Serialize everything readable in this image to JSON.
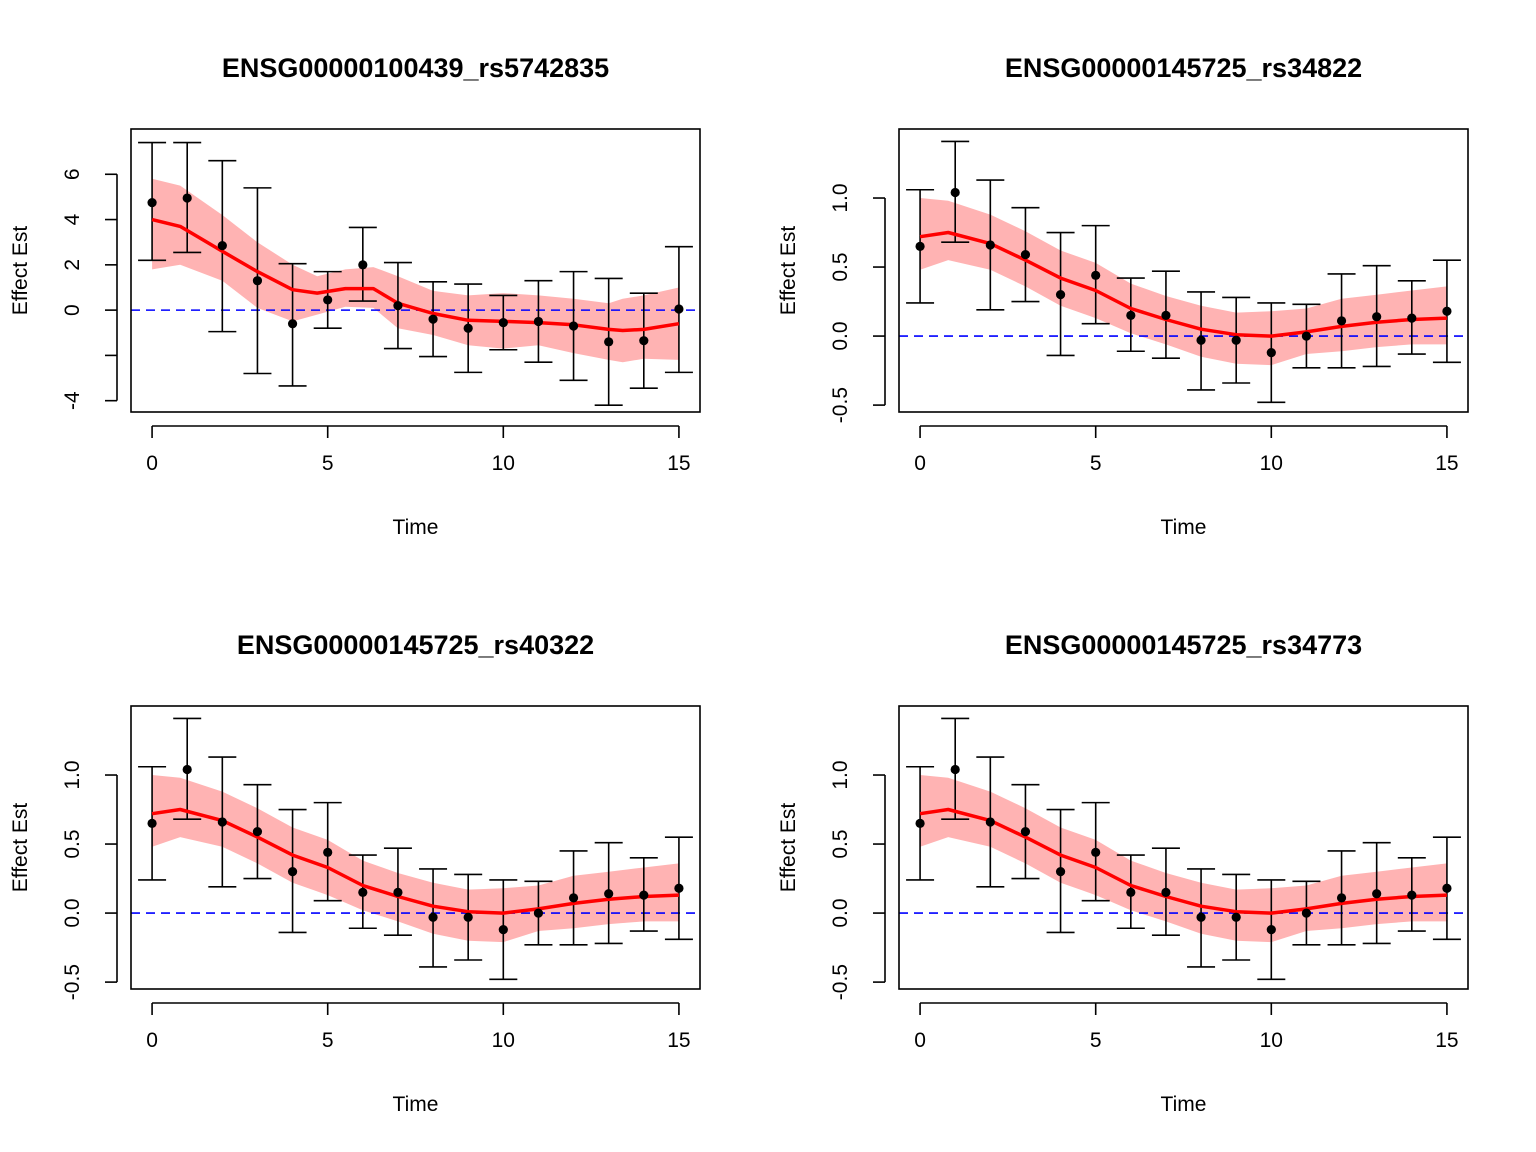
{
  "colors": {
    "band": "#ffb3b3",
    "trend": "#ff0000",
    "points": "#000000",
    "baseline": "#0000ff",
    "errorbar": "#000000"
  },
  "chart_data": [
    {
      "type": "line",
      "title": "ENSG00000100439_rs5742835",
      "xlabel": "Time",
      "ylabel": "Effect Est",
      "xlim": [
        -0.6,
        15.6
      ],
      "ylim": [
        -4.5,
        8.0
      ],
      "xticks": [
        0,
        5,
        10,
        15
      ],
      "yticks": [
        -4,
        -2,
        0,
        2,
        4,
        6
      ],
      "ytick_labels": [
        "-4",
        "",
        "0",
        "2",
        "4",
        "6"
      ],
      "baseline": 0,
      "grid": false,
      "time": [
        0,
        1,
        2,
        3,
        4,
        5,
        6,
        7,
        8,
        9,
        10,
        11,
        12,
        13,
        14,
        15
      ],
      "estimate": [
        4.75,
        4.95,
        2.85,
        1.3,
        -0.6,
        0.45,
        2.0,
        0.2,
        -0.4,
        -0.8,
        -0.55,
        -0.5,
        -0.7,
        -1.4,
        -1.35,
        0.05
      ],
      "ci_lower": [
        2.2,
        2.55,
        -0.95,
        -2.8,
        -3.35,
        -0.8,
        0.4,
        -1.7,
        -2.05,
        -2.75,
        -1.75,
        -2.3,
        -3.1,
        -4.2,
        -3.45,
        -2.75
      ],
      "ci_upper": [
        7.4,
        7.4,
        6.6,
        5.4,
        2.05,
        1.7,
        3.65,
        2.1,
        1.25,
        1.15,
        0.65,
        1.3,
        1.7,
        1.4,
        0.75,
        2.8
      ],
      "fit_x": [
        0,
        0.8,
        2,
        3,
        4,
        4.7,
        5.5,
        6.3,
        7,
        8,
        9,
        10,
        11,
        12,
        13,
        13.4,
        14,
        15
      ],
      "fit": [
        4.0,
        3.7,
        2.6,
        1.7,
        0.9,
        0.75,
        0.95,
        0.95,
        0.3,
        -0.15,
        -0.45,
        -0.5,
        -0.55,
        -0.65,
        -0.85,
        -0.9,
        -0.85,
        -0.6
      ],
      "fit_lower": [
        1.8,
        2.0,
        1.3,
        0.1,
        -0.5,
        -0.2,
        0.15,
        0.1,
        -0.8,
        -1.1,
        -1.55,
        -1.7,
        -1.55,
        -1.9,
        -2.2,
        -2.3,
        -2.15,
        -2.2
      ],
      "fit_upper": [
        5.8,
        5.5,
        4.2,
        3.0,
        2.0,
        1.5,
        1.8,
        1.9,
        1.5,
        0.85,
        0.65,
        0.75,
        0.65,
        0.5,
        0.3,
        0.5,
        0.65,
        1.0
      ]
    },
    {
      "type": "line",
      "title": "ENSG00000145725_rs34822",
      "xlabel": "Time",
      "ylabel": "Effect Est",
      "xlim": [
        -0.6,
        15.6
      ],
      "ylim": [
        -0.55,
        1.5
      ],
      "xticks": [
        0,
        5,
        10,
        15
      ],
      "yticks": [
        -0.5,
        0.0,
        0.5,
        1.0
      ],
      "ytick_labels": [
        "-0.5",
        "0.0",
        "0.5",
        "1.0"
      ],
      "baseline": 0,
      "grid": false,
      "time": [
        0,
        1,
        2,
        3,
        4,
        5,
        6,
        7,
        8,
        9,
        10,
        11,
        12,
        13,
        14,
        15
      ],
      "estimate": [
        0.65,
        1.04,
        0.66,
        0.59,
        0.3,
        0.44,
        0.15,
        0.15,
        -0.03,
        -0.03,
        -0.12,
        0.0,
        0.11,
        0.14,
        0.13,
        0.18
      ],
      "ci_lower": [
        0.24,
        0.68,
        0.19,
        0.25,
        -0.14,
        0.09,
        -0.11,
        -0.16,
        -0.39,
        -0.34,
        -0.48,
        -0.23,
        -0.23,
        -0.22,
        -0.13,
        -0.19
      ],
      "ci_upper": [
        1.06,
        1.41,
        1.13,
        0.93,
        0.75,
        0.8,
        0.42,
        0.47,
        0.32,
        0.28,
        0.24,
        0.23,
        0.45,
        0.51,
        0.4,
        0.55
      ],
      "fit_x": [
        0,
        0.8,
        2,
        3,
        4,
        5,
        6,
        7,
        8,
        9,
        10,
        11,
        12,
        13,
        14,
        15
      ],
      "fit": [
        0.72,
        0.75,
        0.67,
        0.55,
        0.42,
        0.33,
        0.2,
        0.12,
        0.05,
        0.01,
        0.0,
        0.03,
        0.07,
        0.1,
        0.12,
        0.13
      ],
      "fit_lower": [
        0.48,
        0.55,
        0.48,
        0.36,
        0.22,
        0.13,
        0.02,
        -0.06,
        -0.15,
        -0.2,
        -0.21,
        -0.13,
        -0.11,
        -0.08,
        -0.06,
        -0.06
      ],
      "fit_upper": [
        1.0,
        0.98,
        0.88,
        0.76,
        0.62,
        0.53,
        0.38,
        0.29,
        0.22,
        0.17,
        0.18,
        0.2,
        0.27,
        0.3,
        0.33,
        0.36
      ]
    },
    {
      "type": "line",
      "title": "ENSG00000145725_rs40322",
      "xlabel": "Time",
      "ylabel": "Effect Est",
      "xlim": [
        -0.6,
        15.6
      ],
      "ylim": [
        -0.55,
        1.5
      ],
      "xticks": [
        0,
        5,
        10,
        15
      ],
      "yticks": [
        -0.5,
        0.0,
        0.5,
        1.0
      ],
      "ytick_labels": [
        "-0.5",
        "0.0",
        "0.5",
        "1.0"
      ],
      "baseline": 0,
      "grid": false,
      "time": [
        0,
        1,
        2,
        3,
        4,
        5,
        6,
        7,
        8,
        9,
        10,
        11,
        12,
        13,
        14,
        15
      ],
      "estimate": [
        0.65,
        1.04,
        0.66,
        0.59,
        0.3,
        0.44,
        0.15,
        0.15,
        -0.03,
        -0.03,
        -0.12,
        0.0,
        0.11,
        0.14,
        0.13,
        0.18
      ],
      "ci_lower": [
        0.24,
        0.68,
        0.19,
        0.25,
        -0.14,
        0.09,
        -0.11,
        -0.16,
        -0.39,
        -0.34,
        -0.48,
        -0.23,
        -0.23,
        -0.22,
        -0.13,
        -0.19
      ],
      "ci_upper": [
        1.06,
        1.41,
        1.13,
        0.93,
        0.75,
        0.8,
        0.42,
        0.47,
        0.32,
        0.28,
        0.24,
        0.23,
        0.45,
        0.51,
        0.4,
        0.55
      ],
      "fit_x": [
        0,
        0.8,
        2,
        3,
        4,
        5,
        6,
        7,
        8,
        9,
        10,
        11,
        12,
        13,
        14,
        15
      ],
      "fit": [
        0.72,
        0.75,
        0.67,
        0.55,
        0.42,
        0.33,
        0.2,
        0.12,
        0.05,
        0.01,
        0.0,
        0.03,
        0.07,
        0.1,
        0.12,
        0.13
      ],
      "fit_lower": [
        0.48,
        0.55,
        0.48,
        0.36,
        0.22,
        0.13,
        0.02,
        -0.06,
        -0.15,
        -0.2,
        -0.21,
        -0.13,
        -0.11,
        -0.08,
        -0.06,
        -0.06
      ],
      "fit_upper": [
        1.0,
        0.98,
        0.88,
        0.76,
        0.62,
        0.53,
        0.38,
        0.29,
        0.22,
        0.17,
        0.18,
        0.2,
        0.27,
        0.3,
        0.33,
        0.36
      ]
    },
    {
      "type": "line",
      "title": "ENSG00000145725_rs34773",
      "xlabel": "Time",
      "ylabel": "Effect Est",
      "xlim": [
        -0.6,
        15.6
      ],
      "ylim": [
        -0.55,
        1.5
      ],
      "xticks": [
        0,
        5,
        10,
        15
      ],
      "yticks": [
        -0.5,
        0.0,
        0.5,
        1.0
      ],
      "ytick_labels": [
        "-0.5",
        "0.0",
        "0.5",
        "1.0"
      ],
      "baseline": 0,
      "grid": false,
      "time": [
        0,
        1,
        2,
        3,
        4,
        5,
        6,
        7,
        8,
        9,
        10,
        11,
        12,
        13,
        14,
        15
      ],
      "estimate": [
        0.65,
        1.04,
        0.66,
        0.59,
        0.3,
        0.44,
        0.15,
        0.15,
        -0.03,
        -0.03,
        -0.12,
        0.0,
        0.11,
        0.14,
        0.13,
        0.18
      ],
      "ci_lower": [
        0.24,
        0.68,
        0.19,
        0.25,
        -0.14,
        0.09,
        -0.11,
        -0.16,
        -0.39,
        -0.34,
        -0.48,
        -0.23,
        -0.23,
        -0.22,
        -0.13,
        -0.19
      ],
      "ci_upper": [
        1.06,
        1.41,
        1.13,
        0.93,
        0.75,
        0.8,
        0.42,
        0.47,
        0.32,
        0.28,
        0.24,
        0.23,
        0.45,
        0.51,
        0.4,
        0.55
      ],
      "fit_x": [
        0,
        0.8,
        2,
        3,
        4,
        5,
        6,
        7,
        8,
        9,
        10,
        11,
        12,
        13,
        14,
        15
      ],
      "fit": [
        0.72,
        0.75,
        0.67,
        0.55,
        0.42,
        0.33,
        0.2,
        0.12,
        0.05,
        0.01,
        0.0,
        0.03,
        0.07,
        0.1,
        0.12,
        0.13
      ],
      "fit_lower": [
        0.48,
        0.55,
        0.48,
        0.36,
        0.22,
        0.13,
        0.02,
        -0.06,
        -0.15,
        -0.2,
        -0.21,
        -0.13,
        -0.11,
        -0.08,
        -0.06,
        -0.06
      ],
      "fit_upper": [
        1.0,
        0.98,
        0.88,
        0.76,
        0.62,
        0.53,
        0.38,
        0.29,
        0.22,
        0.17,
        0.18,
        0.2,
        0.27,
        0.3,
        0.33,
        0.36
      ]
    }
  ]
}
